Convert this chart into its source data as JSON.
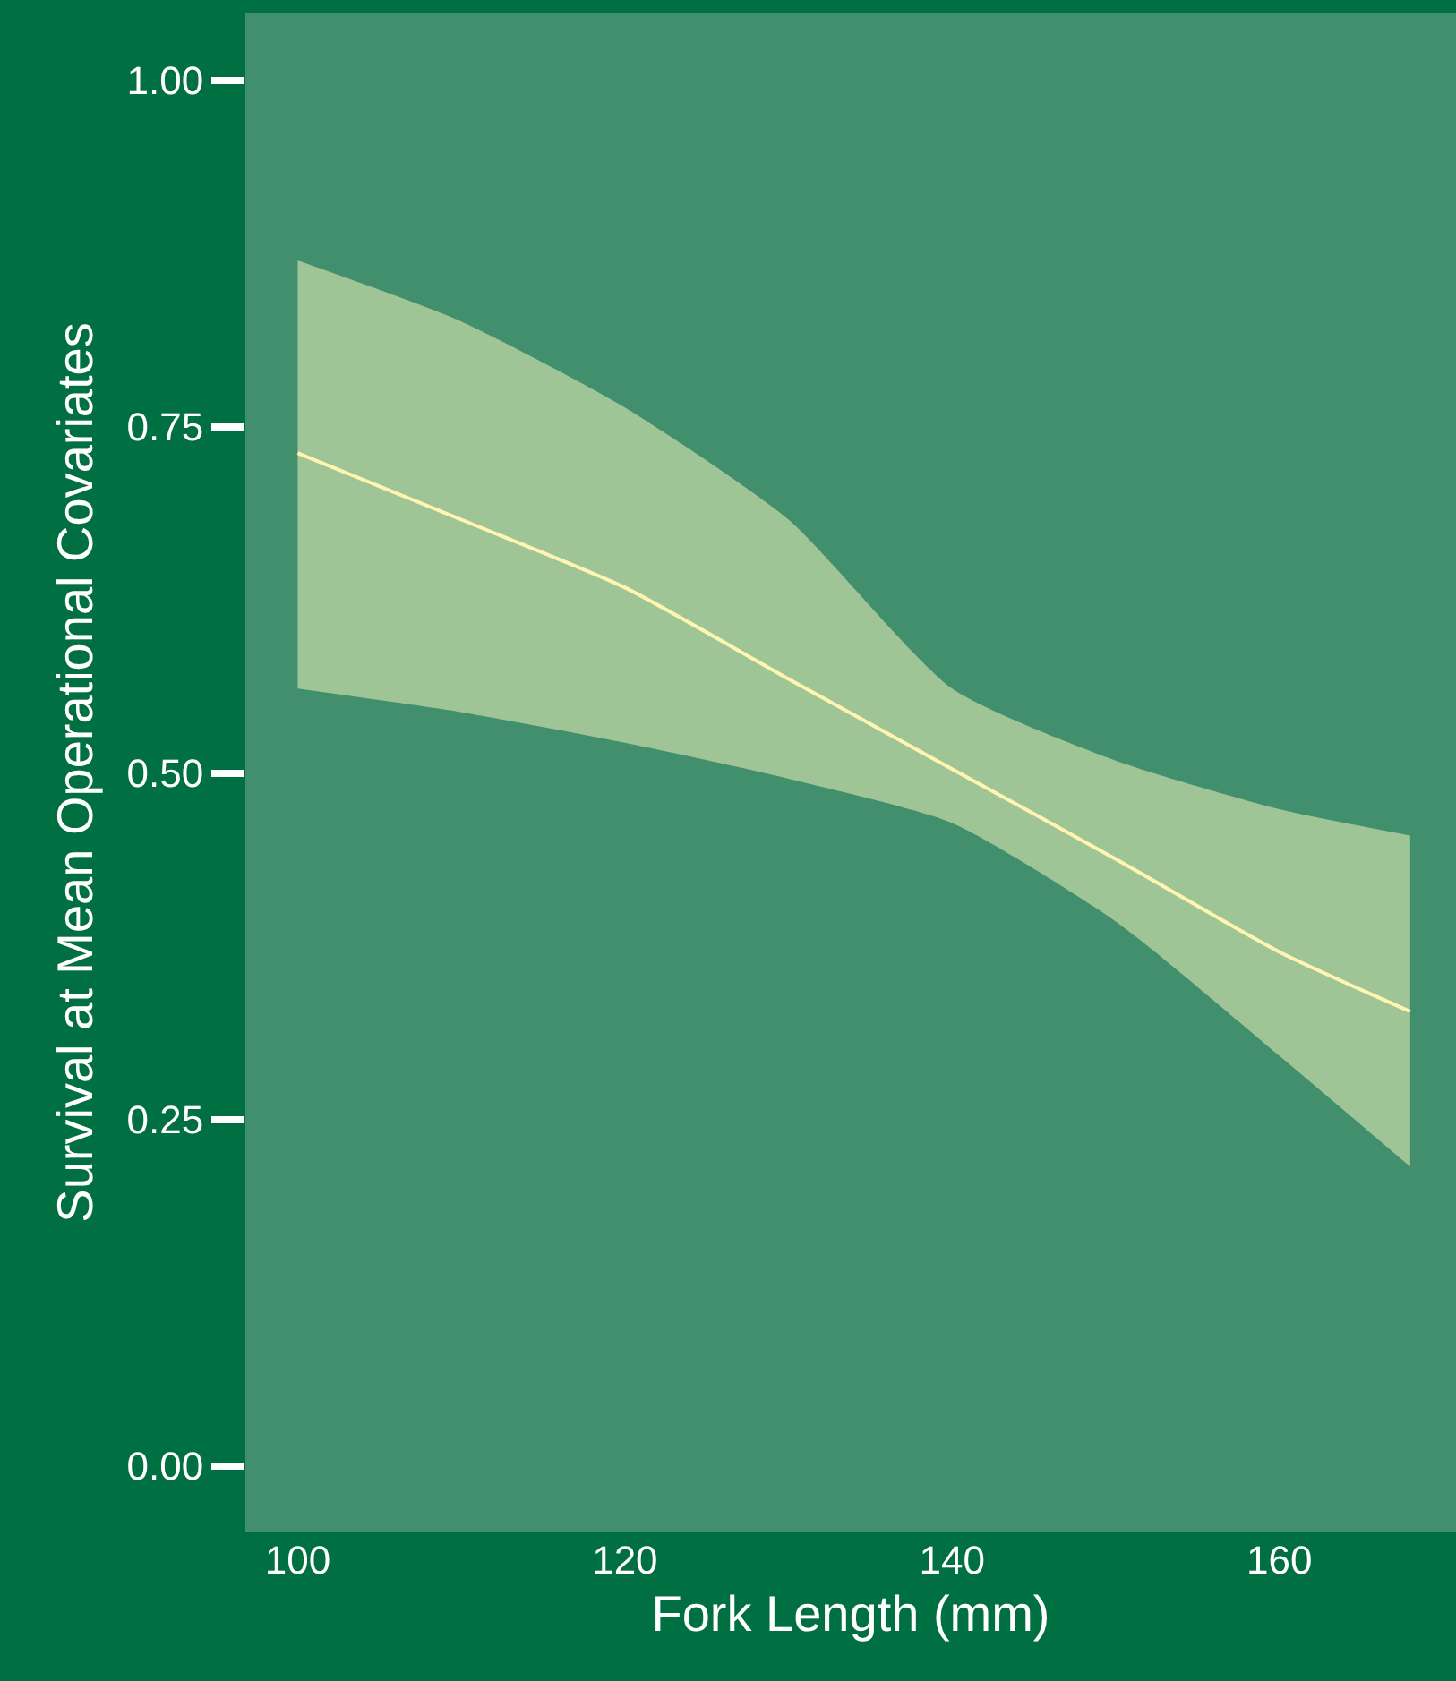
{
  "chart_data": {
    "type": "line",
    "xlabel": "Fork Length (mm)",
    "ylabel": "Survival at Mean Operational Covariates",
    "x": [
      100,
      110,
      120,
      130,
      140,
      150,
      160,
      168
    ],
    "series": [
      {
        "color": "#fff5b0",
        "values": [
          0.731,
          0.683,
          0.634,
          0.568,
          0.503,
          0.438,
          0.371,
          0.328
        ],
        "lower": [
          0.561,
          0.544,
          0.522,
          0.496,
          0.464,
          0.393,
          0.296,
          0.216
        ],
        "upper": [
          0.87,
          0.826,
          0.764,
          0.683,
          0.561,
          0.509,
          0.474,
          0.455
        ]
      }
    ],
    "xlim": [
      96.8,
      170.8
    ],
    "xticks": [
      100,
      120,
      140,
      160
    ],
    "ylim": [
      -0.048,
      1.049
    ],
    "yticks": [
      {
        "value": 0,
        "label": "0.00"
      },
      {
        "value": 0.25,
        "label": "0.25"
      },
      {
        "value": 0.5,
        "label": "0.50"
      },
      {
        "value": 0.75,
        "label": "0.75"
      },
      {
        "value": 1,
        "label": "1.00"
      }
    ],
    "grid": false,
    "line_style": "solid",
    "marker": "none"
  }
}
